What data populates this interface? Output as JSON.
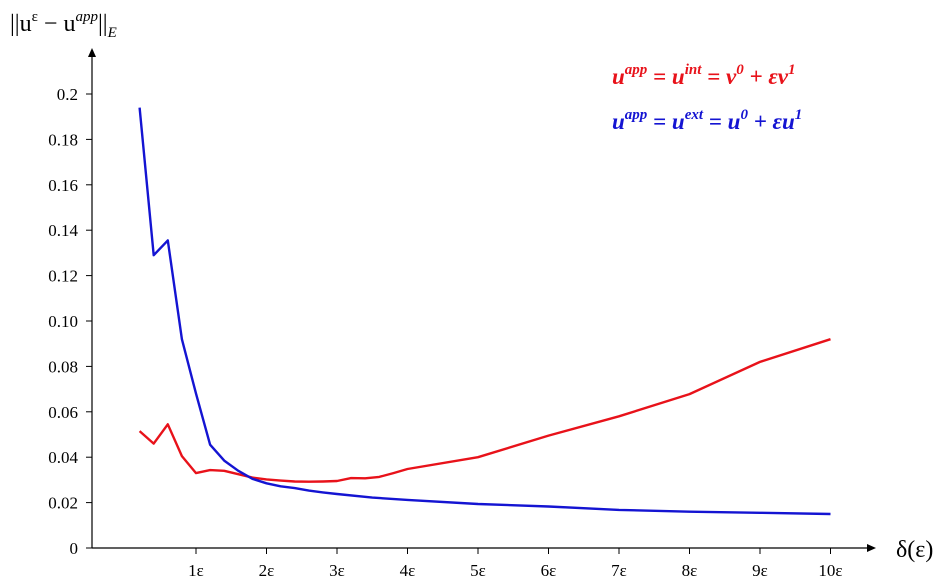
{
  "chart_data": {
    "type": "line",
    "ylabel": {
      "main": "||u",
      "sup1": "ε",
      "mid": " − u",
      "sup2": "app",
      "close": "||",
      "sub": "E"
    },
    "xlabel": "δ(ε)",
    "ylim": [
      0,
      0.2
    ],
    "xlim": [
      0.2,
      10
    ],
    "y_ticks": [
      0,
      0.02,
      0.04,
      0.06,
      0.08,
      0.1,
      0.12,
      0.14,
      0.16,
      0.18,
      0.2
    ],
    "y_tick_labels": [
      "0",
      "0.02",
      "0.04",
      "0.06",
      "0.08",
      "0.10",
      "0.12",
      "0.14",
      "0.16",
      "0.18",
      "0.2"
    ],
    "x_ticks": [
      1,
      2,
      3,
      4,
      5,
      6,
      7,
      8,
      9,
      10
    ],
    "x_tick_labels": [
      "1ε",
      "2ε",
      "3ε",
      "4ε",
      "5ε",
      "6ε",
      "7ε",
      "8ε",
      "9ε",
      "10ε"
    ],
    "grid": false,
    "legend_position": "top-right",
    "series": [
      {
        "color": "#e8121a",
        "legend": {
          "lhs": "u",
          "lhs_sup": "app",
          "eq1": " = u",
          "eq1_sup": "int",
          "eq2": " = v",
          "eq2_sup": "0",
          "plus": " + εv",
          "plus_sup": "1"
        },
        "x": [
          0.2,
          0.4,
          0.6,
          0.8,
          1.0,
          1.2,
          1.4,
          1.6,
          1.8,
          2.0,
          2.2,
          2.4,
          2.6,
          2.8,
          3.0,
          3.2,
          3.4,
          3.6,
          3.8,
          4.0,
          5.0,
          6.0,
          7.0,
          8.0,
          9.0,
          10.0
        ],
        "y": [
          0.0515,
          0.046,
          0.0545,
          0.0405,
          0.033,
          0.0343,
          0.034,
          0.0325,
          0.031,
          0.0302,
          0.0297,
          0.0293,
          0.0292,
          0.0293,
          0.0295,
          0.0308,
          0.0307,
          0.0313,
          0.033,
          0.0348,
          0.04,
          0.0495,
          0.058,
          0.0678,
          0.082,
          0.092
        ]
      },
      {
        "color": "#1414d2",
        "legend": {
          "lhs": "u",
          "lhs_sup": "app",
          "eq1": " = u",
          "eq1_sup": "ext",
          "eq2": " = u",
          "eq2_sup": "0",
          "plus": " + εu",
          "plus_sup": "1"
        },
        "x": [
          0.2,
          0.4,
          0.6,
          0.8,
          1.0,
          1.2,
          1.4,
          1.6,
          1.8,
          2.0,
          2.2,
          2.4,
          2.6,
          2.8,
          3.0,
          3.5,
          4.0,
          5.0,
          6.0,
          7.0,
          8.0,
          9.0,
          10.0
        ],
        "y": [
          0.194,
          0.129,
          0.1355,
          0.092,
          0.068,
          0.0455,
          0.0385,
          0.034,
          0.0305,
          0.0285,
          0.0272,
          0.0264,
          0.0253,
          0.0245,
          0.0238,
          0.0222,
          0.0212,
          0.0194,
          0.0183,
          0.0168,
          0.016,
          0.0155,
          0.015
        ]
      }
    ]
  }
}
